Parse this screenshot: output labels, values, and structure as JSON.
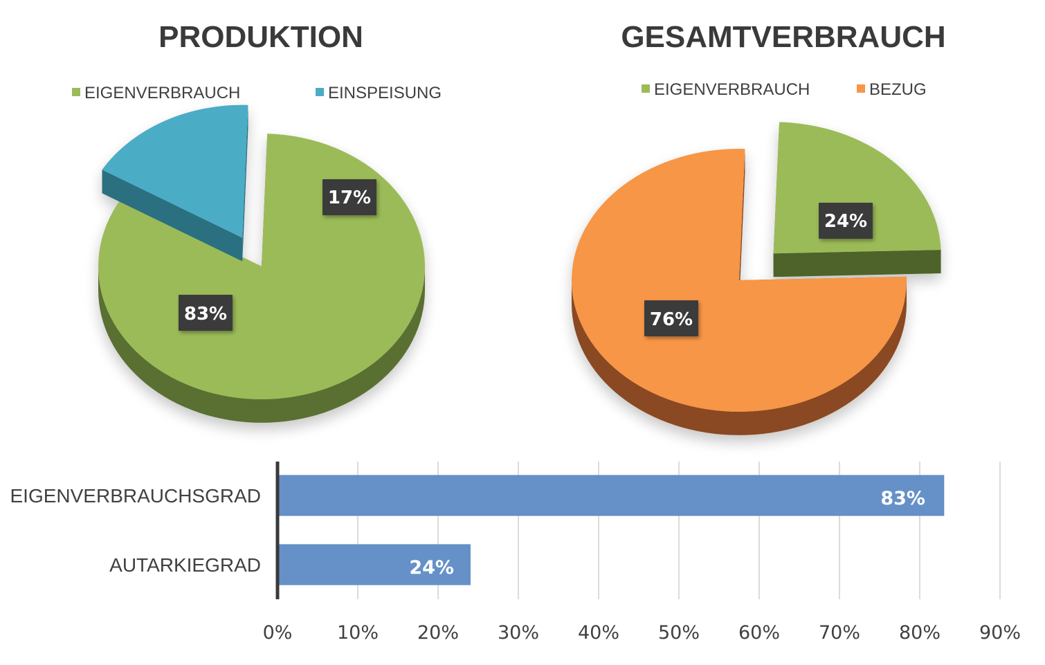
{
  "chart_data": [
    {
      "type": "pie",
      "title": "PRODUKTION",
      "legend_position": "top",
      "style": "3d-exploded",
      "slices": [
        {
          "name": "EIGENVERBRAUCH",
          "value": 83,
          "label": "83%",
          "color": "#9bbb59",
          "side_color": "#5a7030",
          "exploded": false
        },
        {
          "name": "EINSPEISUNG",
          "value": 17,
          "label": "17%",
          "color": "#4bacc6",
          "side_color": "#2a6f80",
          "exploded": true
        }
      ]
    },
    {
      "type": "pie",
      "title": "GESAMTVERBRAUCH",
      "legend_position": "top",
      "style": "3d-exploded",
      "slices": [
        {
          "name": "EIGENVERBRAUCH",
          "value": 24,
          "label": "24%",
          "color": "#9bbb59",
          "side_color": "#4e632a",
          "exploded": true
        },
        {
          "name": "BEZUG",
          "value": 76,
          "label": "76%",
          "color": "#f79646",
          "side_color": "#8a4a20",
          "exploded": false
        }
      ]
    },
    {
      "type": "bar",
      "orientation": "horizontal",
      "categories": [
        "EIGENVERBRAUCHSGRAD",
        "AUTARKIEGRAD"
      ],
      "values": [
        83,
        24
      ],
      "value_labels": [
        "83%",
        "24%"
      ],
      "xlim": [
        0,
        90
      ],
      "xticks": [
        "0%",
        "10%",
        "20%",
        "30%",
        "40%",
        "50%",
        "60%",
        "70%",
        "80%",
        "90%"
      ],
      "grid": true,
      "bar_color": "#6591c8",
      "label_bg": "#3b3b3b"
    }
  ]
}
